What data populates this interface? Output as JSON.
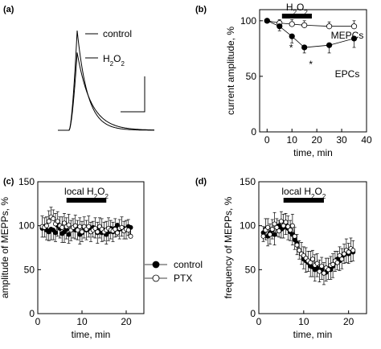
{
  "chart_data": [
    {
      "panel": "(a)",
      "type": "line",
      "legend": [
        "control",
        "H2O2"
      ],
      "series": [
        {
          "name": "control",
          "peak": 1.0
        },
        {
          "name": "H2O2",
          "peak": 0.78
        }
      ]
    },
    {
      "panel": "(b)",
      "type": "line",
      "xlabel": "time, min",
      "ylabel": "current amplitude, %",
      "xlim": [
        -3,
        40
      ],
      "ylim": [
        0,
        110
      ],
      "xticks": [
        0,
        10,
        20,
        30,
        40
      ],
      "yticks": [
        0,
        50,
        100
      ],
      "bar": {
        "label": "H2O2",
        "x": [
          6,
          18
        ]
      },
      "series": [
        {
          "name": "MEPCs",
          "marker": "open",
          "x": [
            0,
            5,
            10,
            15,
            25,
            35
          ],
          "y": [
            100,
            98,
            97,
            96,
            95,
            95
          ],
          "err": [
            1,
            3,
            4,
            4,
            4,
            5
          ]
        },
        {
          "name": "EPCs",
          "marker": "filled",
          "x": [
            0,
            5,
            10,
            15,
            25,
            35
          ],
          "y": [
            100,
            95,
            86,
            76,
            78,
            84
          ],
          "err": [
            1,
            4,
            6,
            5,
            7,
            8
          ]
        }
      ],
      "significance": [
        {
          "x": 10,
          "label": "*"
        },
        {
          "x": 15,
          "label": "*"
        }
      ]
    },
    {
      "panel": "(c)",
      "type": "line",
      "xlabel": "time, min",
      "ylabel": "amplitude of MEPPs, %",
      "xlim": [
        0,
        24
      ],
      "ylim": [
        0,
        150
      ],
      "xticks": [
        0,
        10,
        20
      ],
      "yticks": [
        0,
        50,
        100,
        150
      ],
      "bar": {
        "label": "local H2O2",
        "x": [
          6.5,
          15.5
        ]
      },
      "legend": [
        "control",
        "PTX"
      ],
      "series": [
        {
          "name": "control",
          "marker": "filled",
          "x": [
            1,
            1.5,
            2,
            2.5,
            3,
            3.5,
            4,
            4.5,
            5,
            5.5,
            6,
            6.5,
            7,
            7.5,
            8,
            8.5,
            9,
            9.5,
            10,
            10.5,
            11,
            11.5,
            12,
            12.5,
            13,
            13.5,
            14,
            14.5,
            15,
            15.5,
            16,
            16.5,
            17,
            17.5,
            18,
            18.5,
            19,
            19.5,
            20,
            20.5,
            21
          ],
          "y": [
            97,
            99,
            95,
            93,
            96,
            95,
            92,
            100,
            97,
            91,
            93,
            96,
            90,
            95,
            97,
            95,
            96,
            90,
            92,
            98,
            95,
            97,
            94,
            98,
            96,
            92,
            97,
            92,
            95,
            90,
            93,
            97,
            93,
            97,
            100,
            96,
            98,
            97,
            96,
            99,
            98
          ],
          "err": [
            10,
            12,
            11,
            10,
            12,
            11,
            10,
            12,
            11,
            10,
            12,
            11,
            10,
            12,
            11,
            10,
            12,
            11,
            10,
            12,
            11,
            10,
            12,
            11,
            10,
            12,
            11,
            10,
            12,
            11,
            10,
            12,
            11,
            10,
            12,
            11,
            10,
            12,
            11,
            10,
            12
          ]
        },
        {
          "name": "PTX",
          "marker": "open",
          "x": [
            1,
            1.5,
            2,
            2.5,
            3,
            3.5,
            4,
            4.5,
            5,
            5.5,
            6,
            6.5,
            7,
            7.5,
            8,
            8.5,
            9,
            9.5,
            10,
            10.5,
            11,
            11.5,
            12,
            12.5,
            13,
            13.5,
            14,
            14.5,
            15,
            15.5,
            16,
            16.5,
            17,
            17.5,
            18,
            18.5,
            19,
            19.5,
            20,
            20.5,
            21
          ],
          "y": [
            99,
            98,
            100,
            105,
            110,
            108,
            102,
            105,
            100,
            98,
            103,
            99,
            101,
            95,
            98,
            100,
            95,
            99,
            93,
            99,
            96,
            99,
            93,
            95,
            97,
            93,
            99,
            96,
            93,
            95,
            97,
            95,
            94,
            96,
            92,
            97,
            98,
            94,
            96,
            95,
            88
          ],
          "err": [
            12,
            11,
            10,
            12,
            11,
            10,
            12,
            11,
            10,
            12,
            11,
            10,
            12,
            11,
            10,
            12,
            11,
            10,
            12,
            11,
            10,
            12,
            11,
            10,
            12,
            11,
            10,
            12,
            11,
            10,
            12,
            11,
            10,
            12,
            11,
            10,
            12,
            11,
            10,
            12,
            11
          ]
        }
      ]
    },
    {
      "panel": "(d)",
      "type": "line",
      "xlabel": "time, min",
      "ylabel": "frequency of MEPPs, %",
      "xlim": [
        0,
        24
      ],
      "ylim": [
        0,
        150
      ],
      "xticks": [
        0,
        10,
        20
      ],
      "yticks": [
        0,
        50,
        100,
        150
      ],
      "bar": {
        "label": "local H2O2",
        "x": [
          5.5,
          14.5
        ]
      },
      "series": [
        {
          "name": "control",
          "marker": "filled",
          "x": [
            1,
            1.5,
            2,
            2.5,
            3,
            3.5,
            4,
            4.5,
            5,
            5.5,
            6,
            6.5,
            7,
            7.5,
            8,
            8.5,
            9,
            9.5,
            10,
            10.5,
            11,
            11.5,
            12,
            12.5,
            13,
            13.5,
            14,
            14.5,
            15,
            15.5,
            16,
            16.5,
            17,
            17.5,
            18,
            18.5,
            19,
            19.5,
            20,
            20.5,
            21
          ],
          "y": [
            92,
            96,
            88,
            92,
            95,
            90,
            99,
            100,
            96,
            98,
            101,
            97,
            93,
            90,
            84,
            80,
            72,
            68,
            62,
            60,
            58,
            54,
            53,
            50,
            52,
            48,
            50,
            46,
            47,
            51,
            50,
            54,
            58,
            62,
            60,
            64,
            67,
            70,
            68,
            72,
            70
          ],
          "err": [
            10,
            12,
            11,
            13,
            10,
            12,
            11,
            13,
            10,
            12,
            11,
            13,
            10,
            12,
            11,
            13,
            10,
            12,
            11,
            13,
            10,
            12,
            11,
            13,
            10,
            12,
            11,
            13,
            10,
            12,
            11,
            13,
            10,
            12,
            11,
            13,
            10,
            12,
            11,
            13,
            10
          ]
        },
        {
          "name": "PTX",
          "marker": "open",
          "x": [
            1,
            1.5,
            2,
            2.5,
            3,
            3.5,
            4,
            4.5,
            5,
            5.5,
            6,
            6.5,
            7,
            7.5,
            8,
            8.5,
            9,
            9.5,
            10,
            10.5,
            11,
            11.5,
            12,
            12.5,
            13,
            13.5,
            14,
            14.5,
            15,
            15.5,
            16,
            16.5,
            17,
            17.5,
            18,
            18.5,
            19,
            19.5,
            20,
            20.5,
            21
          ],
          "y": [
            88,
            95,
            98,
            90,
            96,
            102,
            98,
            94,
            105,
            100,
            104,
            99,
            95,
            100,
            88,
            78,
            72,
            68,
            66,
            63,
            60,
            58,
            62,
            55,
            57,
            48,
            54,
            46,
            52,
            50,
            55,
            56,
            60,
            58,
            66,
            62,
            68,
            72,
            70,
            74,
            72
          ],
          "err": [
            11,
            13,
            10,
            12,
            11,
            13,
            10,
            12,
            11,
            13,
            10,
            12,
            11,
            13,
            10,
            12,
            11,
            13,
            10,
            12,
            11,
            13,
            10,
            12,
            11,
            13,
            10,
            12,
            11,
            13,
            10,
            12,
            11,
            13,
            10,
            12,
            11,
            13,
            10,
            12,
            11
          ]
        }
      ]
    }
  ]
}
